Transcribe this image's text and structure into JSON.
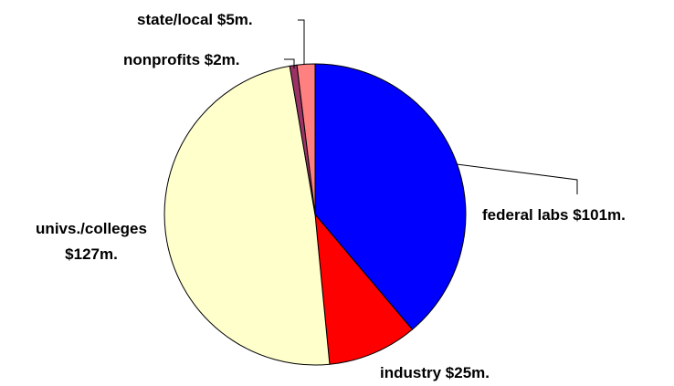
{
  "chart_data": {
    "type": "pie",
    "start_angle_deg": 0,
    "direction": "clockwise",
    "slices": [
      {
        "name": "federal labs",
        "value": 101,
        "color": "#0000FF",
        "label_lines": [
          "federal labs $101m."
        ]
      },
      {
        "name": "industry",
        "value": 25,
        "color": "#FF0000",
        "label_lines": [
          "industry $25m."
        ]
      },
      {
        "name": "univs./colleges",
        "value": 127,
        "color": "#FFFFCC",
        "label_lines": [
          "univs./colleges",
          "$127m."
        ]
      },
      {
        "name": "nonprofits",
        "value": 2,
        "color": "#993366",
        "label_lines": [
          "nonprofits $2m."
        ]
      },
      {
        "name": "state/local",
        "value": 5,
        "color": "#FF8080",
        "label_lines": [
          "state/local $5m."
        ]
      }
    ],
    "legend": "none",
    "labels": "outside with leader lines"
  }
}
